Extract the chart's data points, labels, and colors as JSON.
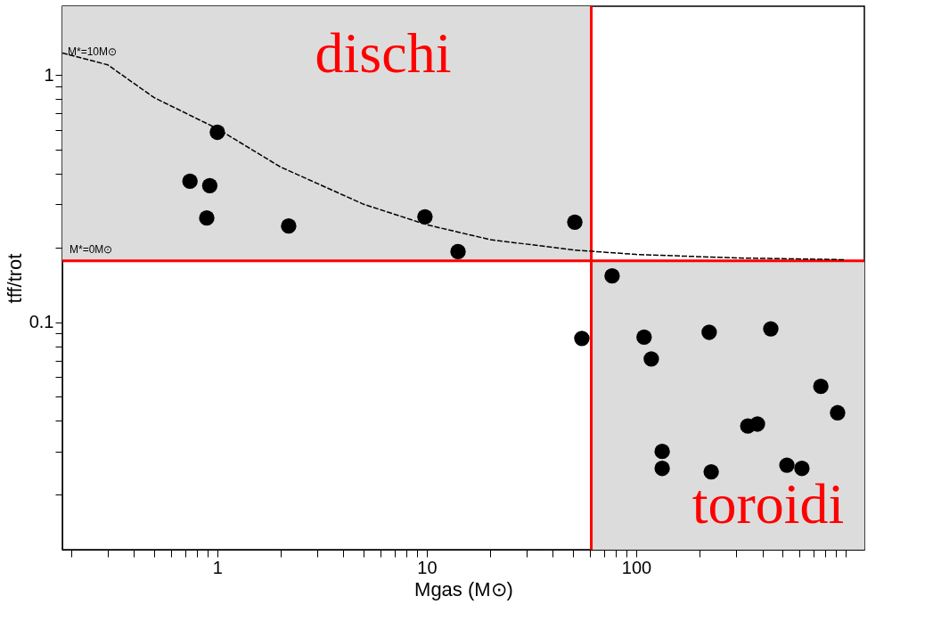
{
  "chart_data": {
    "type": "scatter",
    "xlabel": "Mgas (M⊙)",
    "ylabel": "tff/trot",
    "log": "xy",
    "grid": false,
    "marker": "circle",
    "xlim": [
      0.182,
      1228
    ],
    "ylim": [
      0.012,
      1.9
    ],
    "xticks": [
      {
        "value": 0.2,
        "label": null
      },
      {
        "value": 0.3,
        "label": null
      },
      {
        "value": 0.4,
        "label": null
      },
      {
        "value": 0.5,
        "label": null
      },
      {
        "value": 0.6,
        "label": null
      },
      {
        "value": 0.7,
        "label": null
      },
      {
        "value": 0.8,
        "label": null
      },
      {
        "value": 0.9,
        "label": null
      },
      1,
      {
        "value": 2,
        "label": null
      },
      {
        "value": 3,
        "label": null
      },
      {
        "value": 4,
        "label": null
      },
      {
        "value": 5,
        "label": null
      },
      {
        "value": 6,
        "label": null
      },
      {
        "value": 7,
        "label": null
      },
      {
        "value": 8,
        "label": null
      },
      {
        "value": 9,
        "label": null
      },
      10,
      {
        "value": 20,
        "label": null
      },
      {
        "value": 30,
        "label": null
      },
      {
        "value": 40,
        "label": null
      },
      {
        "value": 50,
        "label": null
      },
      {
        "value": 60,
        "label": null
      },
      {
        "value": 70,
        "label": null
      },
      {
        "value": 80,
        "label": null
      },
      {
        "value": 90,
        "label": null
      },
      100,
      {
        "value": 200,
        "label": null
      },
      {
        "value": 300,
        "label": null
      },
      {
        "value": 400,
        "label": null
      },
      {
        "value": 500,
        "label": null
      },
      {
        "value": 600,
        "label": null
      },
      {
        "value": 700,
        "label": null
      },
      {
        "value": 800,
        "label": null
      },
      {
        "value": 900,
        "label": null
      },
      {
        "value": 1000,
        "label": null
      }
    ],
    "yticks": [
      {
        "value": 0.02,
        "label": null
      },
      {
        "value": 0.03,
        "label": null
      },
      {
        "value": 0.04,
        "label": null
      },
      {
        "value": 0.05,
        "label": null
      },
      {
        "value": 0.06,
        "label": null
      },
      {
        "value": 0.07,
        "label": null
      },
      {
        "value": 0.08,
        "label": null
      },
      {
        "value": 0.09,
        "label": null
      },
      0.1,
      {
        "value": 0.2,
        "label": null
      },
      {
        "value": 0.3,
        "label": null
      },
      {
        "value": 0.4,
        "label": null
      },
      {
        "value": 0.5,
        "label": null
      },
      {
        "value": 0.6,
        "label": null
      },
      {
        "value": 0.7,
        "label": null
      },
      {
        "value": 0.8,
        "label": null
      },
      {
        "value": 0.9,
        "label": null
      },
      1
    ],
    "bands": [
      {
        "axis": "x",
        "from": 0.182,
        "to": 61,
        "color": "#dcdcdc"
      },
      {
        "axis": "x",
        "from": 61,
        "to": 1228,
        "color": "#dcdcdc"
      }
    ],
    "ref_lines": [
      {
        "axis": "x",
        "value": 61,
        "color": "#ff0000",
        "line_style": "solid"
      },
      {
        "axis": "y",
        "value": 0.177,
        "label": "M*=0M⊙",
        "color": "#ff0000",
        "line_style": "solid"
      }
    ],
    "annotations": [
      "dischi",
      "toroidi"
    ],
    "series": [
      {
        "type": "line",
        "name": "M*=10M⊙",
        "color": "#000000",
        "line_style": "dashed",
        "marker": "none",
        "x": [
          0.182,
          0.3,
          0.5,
          1,
          2,
          5,
          10,
          20,
          50,
          100,
          300,
          1000
        ],
        "values": [
          1.23,
          1.1,
          0.81,
          0.607,
          0.425,
          0.3,
          0.248,
          0.216,
          0.196,
          0.188,
          0.182,
          0.179
        ]
      },
      {
        "color": "#000000",
        "x": [
          0.74,
          0.92,
          1.0,
          0.89,
          2.19,
          9.8,
          14.1,
          50.9,
          76.7,
          55,
          109,
          118,
          223,
          439,
          761,
          915,
          341,
          379,
          133,
          133,
          228,
          524,
          618
        ],
        "values": [
          0.372,
          0.357,
          0.587,
          0.264,
          0.245,
          0.267,
          0.193,
          0.254,
          0.154,
          0.086,
          0.087,
          0.071,
          0.091,
          0.094,
          0.055,
          0.043,
          0.038,
          0.0387,
          0.03,
          0.0256,
          0.0248,
          0.0264,
          0.0256
        ]
      }
    ]
  }
}
